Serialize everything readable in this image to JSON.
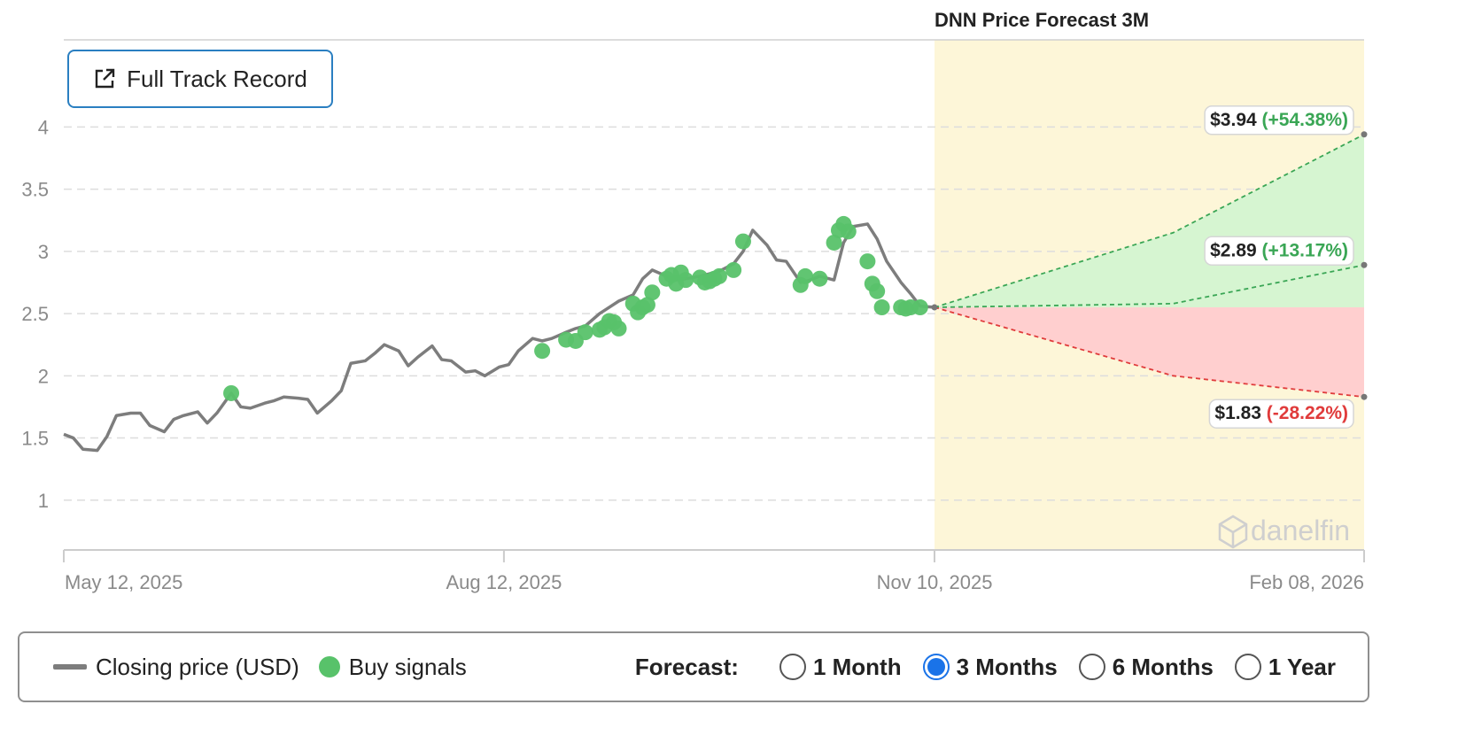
{
  "chart_data": {
    "type": "line",
    "title": "DNN Price Forecast 3M",
    "ylim": [
      0.6,
      4.7
    ],
    "y_ticks": [
      1,
      1.5,
      2,
      2.5,
      3,
      3.5,
      4
    ],
    "x_ticks": [
      "May 12, 2025",
      "Aug 12, 2025",
      "Nov 10, 2025",
      "Feb 08, 2026"
    ],
    "grid": "horizontal dashed",
    "series": [
      {
        "name": "Closing price (USD)",
        "color": "#7d7d7d",
        "dates": [
          "2025-05-12",
          "2025-05-14",
          "2025-05-16",
          "2025-05-19",
          "2025-05-21",
          "2025-05-23",
          "2025-05-26",
          "2025-05-28",
          "2025-05-30",
          "2025-06-02",
          "2025-06-04",
          "2025-06-06",
          "2025-06-09",
          "2025-06-11",
          "2025-06-13",
          "2025-06-16",
          "2025-06-18",
          "2025-06-20",
          "2025-06-23",
          "2025-06-25",
          "2025-06-27",
          "2025-06-30",
          "2025-07-02",
          "2025-07-04",
          "2025-07-07",
          "2025-07-09",
          "2025-07-11",
          "2025-07-14",
          "2025-07-16",
          "2025-07-18",
          "2025-07-21",
          "2025-07-23",
          "2025-07-25",
          "2025-07-28",
          "2025-07-30",
          "2025-08-01",
          "2025-08-04",
          "2025-08-06",
          "2025-08-08",
          "2025-08-11",
          "2025-08-13",
          "2025-08-15",
          "2025-08-18",
          "2025-08-20",
          "2025-08-22",
          "2025-08-25",
          "2025-08-27",
          "2025-08-29",
          "2025-09-01",
          "2025-09-03",
          "2025-09-05",
          "2025-09-08",
          "2025-09-10",
          "2025-09-12",
          "2025-09-15",
          "2025-09-17",
          "2025-09-19",
          "2025-09-22",
          "2025-09-24",
          "2025-09-26",
          "2025-09-29",
          "2025-10-01",
          "2025-10-03",
          "2025-10-06",
          "2025-10-08",
          "2025-10-10",
          "2025-10-13",
          "2025-10-15",
          "2025-10-17",
          "2025-10-20",
          "2025-10-22",
          "2025-10-24",
          "2025-10-27",
          "2025-10-29",
          "2025-10-31",
          "2025-11-03",
          "2025-11-05",
          "2025-11-07",
          "2025-11-10"
        ],
        "values": [
          1.53,
          1.5,
          1.41,
          1.4,
          1.51,
          1.68,
          1.7,
          1.7,
          1.6,
          1.55,
          1.65,
          1.68,
          1.71,
          1.62,
          1.7,
          1.86,
          1.75,
          1.74,
          1.78,
          1.8,
          1.83,
          1.82,
          1.81,
          1.7,
          1.8,
          1.88,
          2.1,
          2.12,
          2.18,
          2.25,
          2.2,
          2.08,
          2.15,
          2.24,
          2.13,
          2.12,
          2.03,
          2.04,
          2.0,
          2.07,
          2.09,
          2.2,
          2.3,
          2.28,
          2.3,
          2.35,
          2.38,
          2.4,
          2.5,
          2.55,
          2.6,
          2.65,
          2.78,
          2.85,
          2.8,
          2.77,
          2.78,
          2.8,
          2.82,
          2.84,
          2.9,
          3.0,
          3.17,
          3.05,
          2.93,
          2.92,
          2.75,
          2.77,
          2.8,
          2.77,
          3.07,
          3.2,
          3.22,
          3.1,
          2.92,
          2.75,
          2.66,
          2.56,
          2.55
        ]
      },
      {
        "name": "Buy signals",
        "color": "#58c26a",
        "dates": [
          "2025-06-16",
          "2025-08-20",
          "2025-08-25",
          "2025-08-27",
          "2025-08-29",
          "2025-09-01",
          "2025-09-02",
          "2025-09-03",
          "2025-09-04",
          "2025-09-05",
          "2025-09-08",
          "2025-09-09",
          "2025-09-10",
          "2025-09-11",
          "2025-09-12",
          "2025-09-15",
          "2025-09-16",
          "2025-09-17",
          "2025-09-18",
          "2025-09-19",
          "2025-09-22",
          "2025-09-23",
          "2025-09-24",
          "2025-09-25",
          "2025-09-26",
          "2025-09-29",
          "2025-10-01",
          "2025-10-13",
          "2025-10-14",
          "2025-10-17",
          "2025-10-20",
          "2025-10-21",
          "2025-10-22",
          "2025-10-23",
          "2025-10-27",
          "2025-10-28",
          "2025-10-29",
          "2025-10-30",
          "2025-11-03",
          "2025-11-04",
          "2025-11-05",
          "2025-11-07"
        ],
        "values": [
          1.86,
          2.2,
          2.29,
          2.28,
          2.35,
          2.37,
          2.39,
          2.44,
          2.43,
          2.38,
          2.58,
          2.51,
          2.55,
          2.57,
          2.67,
          2.78,
          2.81,
          2.74,
          2.83,
          2.77,
          2.79,
          2.75,
          2.76,
          2.78,
          2.8,
          2.85,
          3.08,
          2.73,
          2.8,
          2.78,
          3.07,
          3.17,
          3.22,
          3.16,
          2.92,
          2.74,
          2.68,
          2.55,
          2.55,
          2.54,
          2.55,
          2.55
        ]
      }
    ],
    "forecast": {
      "start_date": "2025-11-10",
      "end_date": "2026-02-08",
      "start_value": 2.55,
      "scenarios": [
        {
          "key": "high",
          "mid_value": 3.15,
          "end_value": 3.94,
          "price": "$3.94",
          "change": "(+54.38%)",
          "tone": "up"
        },
        {
          "key": "mid",
          "mid_value": 2.58,
          "end_value": 2.89,
          "price": "$2.89",
          "change": "(+13.17%)",
          "tone": "up"
        },
        {
          "key": "low",
          "mid_value": 2.0,
          "end_value": 1.83,
          "price": "$1.83",
          "change": "(-28.22%)",
          "tone": "down"
        }
      ],
      "colors": {
        "zone": "#fdf6d8",
        "up_fill": "#d6f5d1",
        "down_fill": "#ffcfcf",
        "up_line": "#3aa655",
        "down_line": "#e03b3b"
      }
    },
    "watermark": "danelfin"
  },
  "button": {
    "label": "Full Track Record",
    "icon": "external-link-icon"
  },
  "legend": {
    "closing_label": "Closing price (USD)",
    "buy_label": "Buy signals",
    "forecast_label": "Forecast:",
    "options": [
      "1 Month",
      "3 Months",
      "6 Months",
      "1 Year"
    ],
    "selected": "3 Months"
  }
}
